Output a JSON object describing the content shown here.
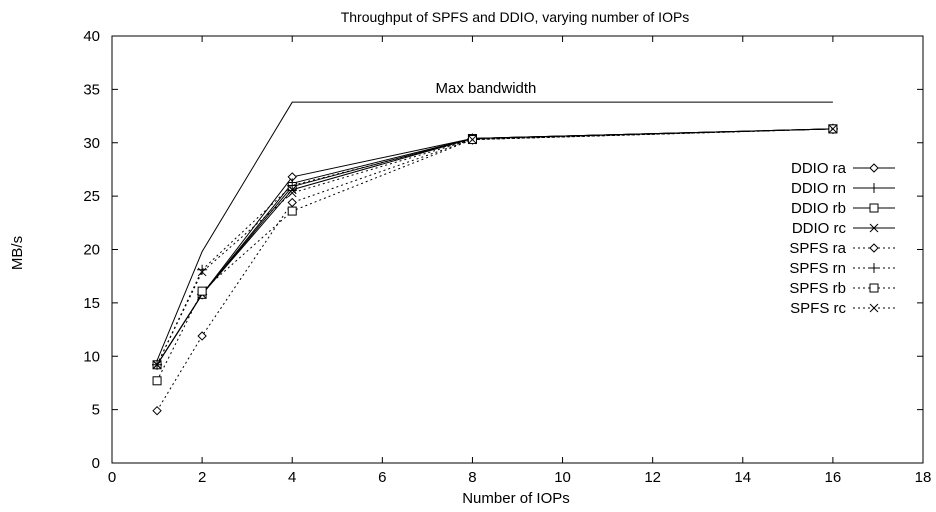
{
  "chart_data": {
    "type": "line",
    "title": "Throughput of SPFS and DDIO, varying number of IOPs",
    "xlabel": "Number of IOPs",
    "ylabel": "MB/s",
    "xlim": [
      0,
      18
    ],
    "ylim": [
      0,
      40
    ],
    "xticks": [
      0,
      2,
      4,
      6,
      8,
      10,
      12,
      14,
      16,
      18
    ],
    "yticks": [
      0,
      5,
      10,
      15,
      20,
      25,
      30,
      35,
      40
    ],
    "grid": false,
    "legend_position": "right",
    "reference_line": {
      "label": "Max bandwidth",
      "x": [
        1,
        2,
        4,
        8,
        16
      ],
      "y": [
        9.6,
        19.8,
        33.8,
        33.8,
        33.8
      ]
    },
    "series": [
      {
        "name": "DDIO ra",
        "x": [
          1,
          2,
          4,
          8,
          16
        ],
        "y": [
          9.2,
          15.8,
          26.8,
          30.4,
          31.3
        ],
        "marker": "diamond",
        "dash": "solid"
      },
      {
        "name": "DDIO rn",
        "x": [
          1,
          2,
          4,
          8,
          16
        ],
        "y": [
          9.2,
          15.8,
          26.2,
          30.4,
          31.3
        ],
        "marker": "plus",
        "dash": "solid"
      },
      {
        "name": "DDIO rb",
        "x": [
          1,
          2,
          4,
          8,
          16
        ],
        "y": [
          9.2,
          15.8,
          25.9,
          30.4,
          31.3
        ],
        "marker": "square",
        "dash": "solid"
      },
      {
        "name": "DDIO rc",
        "x": [
          1,
          2,
          4,
          8,
          16
        ],
        "y": [
          9.2,
          15.8,
          25.6,
          30.4,
          31.3
        ],
        "marker": "cross",
        "dash": "solid"
      },
      {
        "name": "SPFS ra",
        "x": [
          1,
          2,
          4,
          8,
          16
        ],
        "y": [
          4.9,
          11.9,
          24.4,
          30.3,
          31.3
        ],
        "marker": "diamond",
        "dash": "dotted"
      },
      {
        "name": "SPFS rn",
        "x": [
          1,
          2,
          4,
          8,
          16
        ],
        "y": [
          9.2,
          18.1,
          26.0,
          30.3,
          31.3
        ],
        "marker": "plus",
        "dash": "dotted"
      },
      {
        "name": "SPFS rb",
        "x": [
          1,
          2,
          4,
          8,
          16
        ],
        "y": [
          7.7,
          16.1,
          23.6,
          30.3,
          31.3
        ],
        "marker": "square",
        "dash": "dotted"
      },
      {
        "name": "SPFS rc",
        "x": [
          1,
          2,
          4,
          8,
          16
        ],
        "y": [
          9.2,
          17.9,
          25.3,
          30.3,
          31.3
        ],
        "marker": "cross",
        "dash": "dotted"
      }
    ]
  }
}
